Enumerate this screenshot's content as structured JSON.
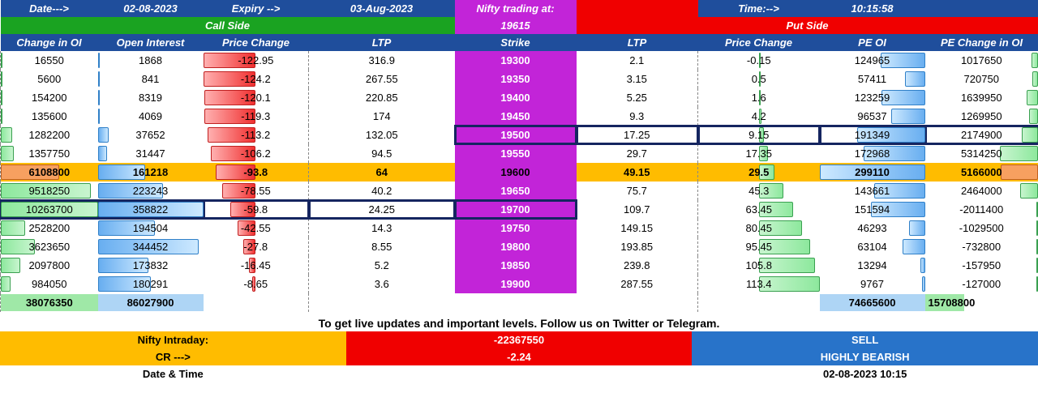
{
  "header": {
    "date_label": "Date--->",
    "date_value": "02-08-2023",
    "expiry_label": "Expiry -->",
    "expiry_value": "03-Aug-2023",
    "nifty_label": "Nifty trading at:",
    "nifty_value": "19615",
    "time_label": "Time:-->",
    "time_value": "10:15:58",
    "call_side": "Call Side",
    "put_side": "Put Side"
  },
  "columns": {
    "c1": "Change in OI",
    "c2": "Open Interest",
    "c3": "Price Change",
    "c4": "LTP",
    "c5": "Strike",
    "c6": "LTP",
    "c7": "Price Change",
    "c8": "PE OI",
    "c9": "PE Change in OI"
  },
  "rows": [
    {
      "atm": false,
      "box_put": false,
      "box_call": false,
      "c1": "16550",
      "c2": "1868",
      "c3": "-122.95",
      "c4": "316.9",
      "c5": "19300",
      "c6": "2.1",
      "c7": "-0.15",
      "c8": "124965",
      "c9": "1017650",
      "b1": 0.0,
      "b2": 0.0,
      "b3": 1.0,
      "b7": 0.0,
      "b8": 0.42,
      "b9": 0.06
    },
    {
      "atm": false,
      "box_put": false,
      "box_call": false,
      "c1": "5600",
      "c2": "841",
      "c3": "-124.2",
      "c4": "267.55",
      "c5": "19350",
      "c6": "3.15",
      "c7": "0.5",
      "c8": "57411",
      "c9": "720750",
      "b1": 0.0,
      "b2": 0.0,
      "b3": 1.0,
      "b7": 0.0,
      "b8": 0.19,
      "b9": 0.05
    },
    {
      "atm": false,
      "box_put": false,
      "box_call": false,
      "c1": "154200",
      "c2": "8319",
      "c3": "-120.1",
      "c4": "220.85",
      "c5": "19400",
      "c6": "5.25",
      "c7": "1.6",
      "c8": "123259",
      "c9": "1639950",
      "b1": 0.02,
      "b2": 0.02,
      "b3": 0.98,
      "b7": 0.01,
      "b8": 0.41,
      "b9": 0.1
    },
    {
      "atm": false,
      "box_put": false,
      "box_call": false,
      "c1": "135600",
      "c2": "4069",
      "c3": "-119.3",
      "c4": "174",
      "c5": "19450",
      "c6": "9.3",
      "c7": "4.2",
      "c8": "96537",
      "c9": "1269950",
      "b1": 0.01,
      "b2": 0.01,
      "b3": 0.97,
      "b7": 0.04,
      "b8": 0.32,
      "b9": 0.08
    },
    {
      "atm": false,
      "box_put": true,
      "box_call": false,
      "c1": "1282200",
      "c2": "37652",
      "c3": "-113.2",
      "c4": "132.05",
      "c5": "19500",
      "c6": "17.25",
      "c7": "9.15",
      "c8": "191349",
      "c9": "2174900",
      "b1": 0.12,
      "b2": 0.1,
      "b3": 0.92,
      "b7": 0.08,
      "b8": 0.64,
      "b9": 0.14
    },
    {
      "atm": false,
      "box_put": false,
      "box_call": false,
      "c1": "1357750",
      "c2": "31447",
      "c3": "-106.2",
      "c4": "94.5",
      "c5": "19550",
      "c6": "29.7",
      "c7": "17.35",
      "c8": "172968",
      "c9": "5314250",
      "b1": 0.13,
      "b2": 0.09,
      "b3": 0.86,
      "b7": 0.15,
      "b8": 0.58,
      "b9": 0.34
    },
    {
      "atm": true,
      "box_put": false,
      "box_call": false,
      "c1": "6108800",
      "c2": "161218",
      "c3": "-93.8",
      "c4": "64",
      "c5": "19600",
      "c6": "49.15",
      "c7": "29.5",
      "c8": "299110",
      "c9": "5166000",
      "b1": 0.6,
      "b2": 0.45,
      "b3": 0.76,
      "b7": 0.26,
      "b8": 1.0,
      "b9": 0.33
    },
    {
      "atm": false,
      "box_put": false,
      "box_call": false,
      "c1": "9518250",
      "c2": "223243",
      "c3": "-78.55",
      "c4": "40.2",
      "c5": "19650",
      "c6": "75.7",
      "c7": "45.3",
      "c8": "143661",
      "c9": "2464000",
      "b1": 0.93,
      "b2": 0.62,
      "b3": 0.64,
      "b7": 0.4,
      "b8": 0.48,
      "b9": 0.16
    },
    {
      "atm": false,
      "box_put": false,
      "box_call": true,
      "c1": "10263700",
      "c2": "358822",
      "c3": "-59.8",
      "c4": "24.25",
      "c5": "19700",
      "c6": "109.7",
      "c7": "63.45",
      "c8": "151594",
      "c9": "-2011400",
      "b1": 1.0,
      "b2": 1.0,
      "b3": 0.49,
      "b7": 0.56,
      "b8": 0.51,
      "b9": 0.0
    },
    {
      "atm": false,
      "box_put": false,
      "box_call": false,
      "c1": "2528200",
      "c2": "194504",
      "c3": "-42.55",
      "c4": "14.3",
      "c5": "19750",
      "c6": "149.15",
      "c7": "80.45",
      "c8": "46293",
      "c9": "-1029500",
      "b1": 0.25,
      "b2": 0.54,
      "b3": 0.35,
      "b7": 0.71,
      "b8": 0.15,
      "b9": 0.0
    },
    {
      "atm": false,
      "box_put": false,
      "box_call": false,
      "c1": "3623650",
      "c2": "344452",
      "c3": "-27.8",
      "c4": "8.55",
      "c5": "19800",
      "c6": "193.85",
      "c7": "95.45",
      "c8": "63104",
      "c9": "-732800",
      "b1": 0.35,
      "b2": 0.96,
      "b3": 0.23,
      "b7": 0.84,
      "b8": 0.21,
      "b9": 0.0
    },
    {
      "atm": false,
      "box_put": false,
      "box_call": false,
      "c1": "2097800",
      "c2": "173832",
      "c3": "-16.45",
      "c4": "5.2",
      "c5": "19850",
      "c6": "239.8",
      "c7": "105.8",
      "c8": "13294",
      "c9": "-157950",
      "b1": 0.2,
      "b2": 0.48,
      "b3": 0.13,
      "b7": 0.93,
      "b8": 0.04,
      "b9": 0.0
    },
    {
      "atm": false,
      "box_put": false,
      "box_call": false,
      "c1": "984050",
      "c2": "180291",
      "c3": "-8.65",
      "c4": "3.6",
      "c5": "19900",
      "c6": "287.55",
      "c7": "113.4",
      "c8": "9767",
      "c9": "-127000",
      "b1": 0.1,
      "b2": 0.5,
      "b3": 0.07,
      "b7": 1.0,
      "b8": 0.03,
      "b9": 0.0
    }
  ],
  "totals": {
    "c1": "38076350",
    "c2": "86027900",
    "c8": "74665600",
    "c9": "15708800"
  },
  "footer": {
    "promo": "To get live updates and important levels. Follow us on Twitter or Telegram.",
    "l1a": "Nifty Intraday:",
    "l1b": "-22367550",
    "l1c": "SELL",
    "l2a": "CR --->",
    "l2b": "-2.24",
    "l2c": "HIGHLY BEARISH",
    "l3a": "Date & Time",
    "l3b": "02-08-2023 10:15"
  },
  "widths": {
    "c1": 120,
    "c2": 130,
    "c3": 130,
    "c4": 180,
    "c5": 150,
    "c6": 150,
    "c7": 150,
    "c8": 130,
    "c9": 140
  }
}
